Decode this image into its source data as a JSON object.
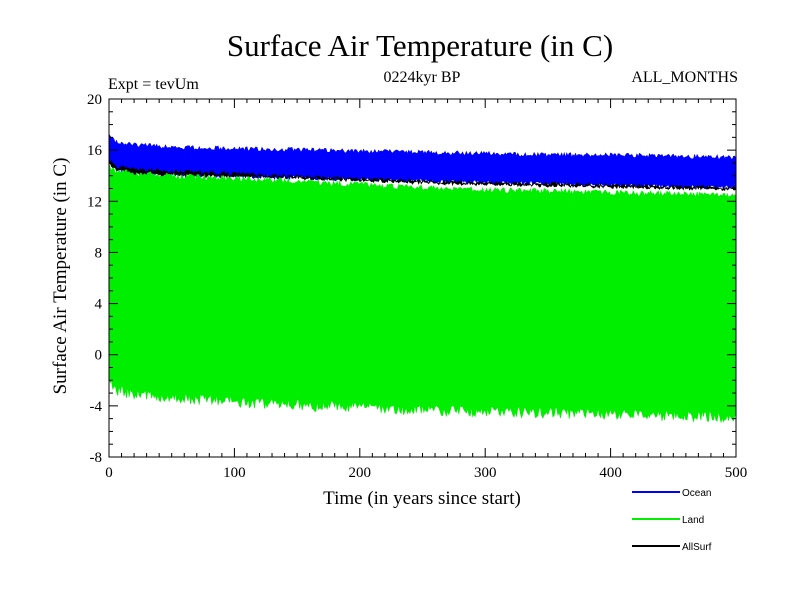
{
  "chart_data": {
    "type": "line",
    "title": "Surface Air Temperature (in C)",
    "subtitle_left": "Expt = tevUm",
    "subtitle_center": "0224kyr BP",
    "subtitle_right": "ALL_MONTHS",
    "xlabel": "Time (in years since start)",
    "ylabel": "Surface Air Temperature (in C)",
    "xlim": [
      0,
      500
    ],
    "ylim": [
      -8,
      20
    ],
    "x_ticks": [
      0,
      100,
      200,
      300,
      400,
      500
    ],
    "y_ticks": [
      -8,
      -4,
      0,
      4,
      8,
      12,
      16,
      20
    ],
    "grid": false,
    "legend_position": "bottom-right",
    "series": [
      {
        "name": "Ocean",
        "color": "#0000ff",
        "envelope_x": [
          0,
          5,
          20,
          50,
          100,
          150,
          200,
          250,
          300,
          350,
          400,
          450,
          500
        ],
        "envelope_low": [
          15.0,
          14.4,
          14.0,
          13.9,
          13.8,
          13.7,
          13.5,
          13.4,
          13.3,
          13.2,
          13.1,
          13.0,
          12.9
        ],
        "envelope_high": [
          17.5,
          16.8,
          16.6,
          16.4,
          16.3,
          16.2,
          16.1,
          16.0,
          15.9,
          15.8,
          15.8,
          15.7,
          15.6
        ]
      },
      {
        "name": "Land",
        "color": "#00ee00",
        "envelope_x": [
          0,
          5,
          20,
          50,
          100,
          150,
          200,
          250,
          300,
          350,
          400,
          450,
          500
        ],
        "envelope_low": [
          -2.5,
          -3.2,
          -3.5,
          -3.8,
          -4.1,
          -4.4,
          -4.6,
          -4.8,
          -4.9,
          -5.0,
          -5.1,
          -5.2,
          -5.4
        ],
        "envelope_high": [
          15.0,
          14.6,
          14.4,
          14.2,
          14.0,
          13.8,
          13.5,
          13.3,
          13.1,
          13.0,
          12.9,
          12.8,
          12.7
        ]
      },
      {
        "name": "AllSurf",
        "color": "#000000",
        "envelope_x": [
          0,
          5,
          20,
          50,
          100,
          150,
          200,
          250,
          300,
          350,
          400,
          450,
          500
        ],
        "envelope_low": [
          14.8,
          14.3,
          14.0,
          13.9,
          13.8,
          13.7,
          13.5,
          13.3,
          13.2,
          13.1,
          13.0,
          12.9,
          12.8
        ],
        "envelope_high": [
          15.4,
          14.9,
          14.7,
          14.5,
          14.3,
          14.1,
          13.9,
          13.7,
          13.6,
          13.5,
          13.4,
          13.3,
          13.2
        ]
      }
    ]
  }
}
